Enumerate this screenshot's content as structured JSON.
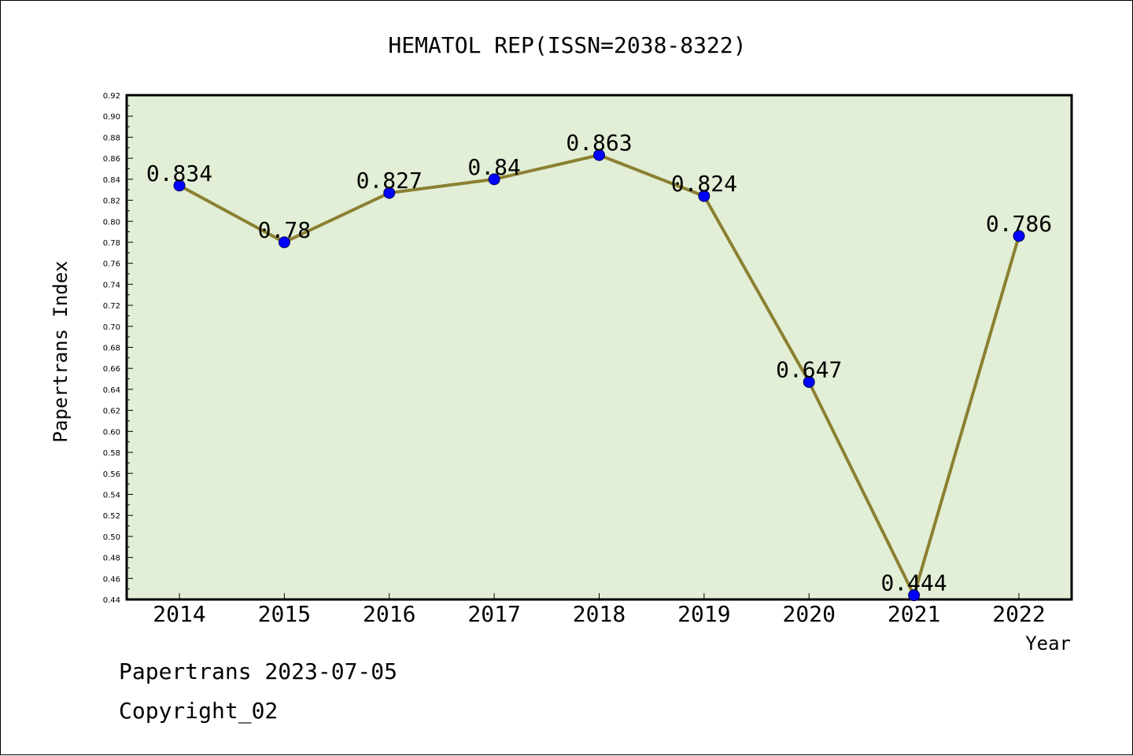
{
  "chart_data": {
    "type": "line",
    "title": "HEMATOL REP(ISSN=2038-8322)",
    "xlabel": "Year",
    "ylabel": "Papertrans Index",
    "categories": [
      "2014",
      "2015",
      "2016",
      "2017",
      "2018",
      "2019",
      "2020",
      "2021",
      "2022"
    ],
    "series": [
      {
        "values": [
          0.834,
          0.78,
          0.827,
          0.84,
          0.863,
          0.824,
          0.647,
          0.444,
          0.786
        ],
        "data_labels": [
          "0.834",
          "0.78",
          "0.827",
          "0.84",
          "0.863",
          "0.824",
          "0.647",
          "0.444",
          "0.786"
        ]
      }
    ],
    "ylim": [
      0.44,
      0.92
    ],
    "ytick_step": 0.02,
    "grid": false,
    "legend": "none",
    "colors": {
      "plot_background": "#e2efd6",
      "line": "#8b8032",
      "marker": "#0000ff"
    }
  },
  "footer": {
    "line1": "Papertrans 2023-07-05",
    "line2": "Copyright_02"
  }
}
